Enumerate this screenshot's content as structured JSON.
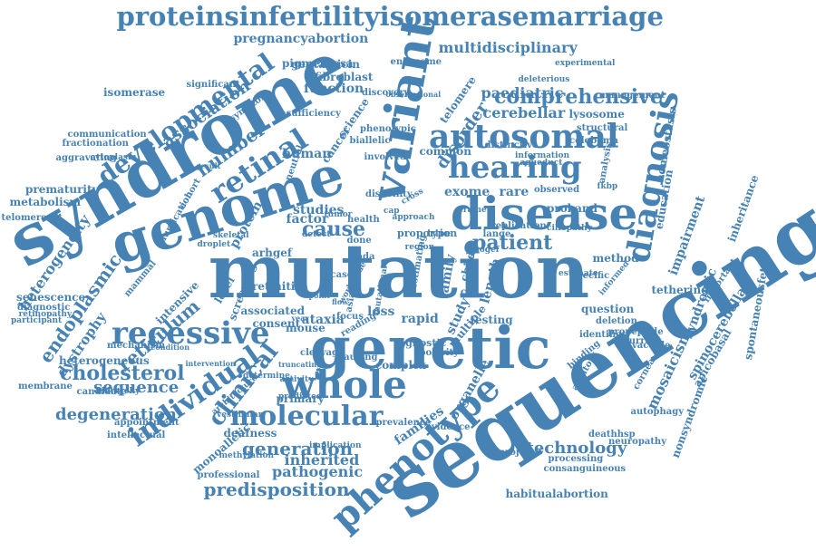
{
  "style": {
    "word_color": "#4682B4",
    "background": "#FFFFFF"
  },
  "words": [
    "proteinsinfertilityisomerasemarriage",
    "sequencing",
    "mutation",
    "syndrome",
    "genetic",
    "genome",
    "variant",
    "disease",
    "whole",
    "diagnosis",
    "autosomal",
    "hearing",
    "recessive",
    "developmental",
    "retinal",
    "phenotype",
    "individual",
    "clinical",
    "molecular",
    "comprehensive",
    "association",
    "number",
    "cause",
    "patient",
    "cholesterol",
    "degeneration",
    "generation",
    "predisposition",
    "pathogenic",
    "technology",
    "reticulum",
    "endoplasmic",
    "heterogeneity",
    "dystrophy",
    "sequence",
    "ataxia",
    "loss",
    "rapid",
    "pregnancyabortion",
    "pigmentosa",
    "multidisciplinary",
    "paediatric",
    "cerebellar",
    "lysosome",
    "disorder",
    "telomere",
    "science",
    "cancer",
    "human",
    "function",
    "fibroblast",
    "gentamicin",
    "endosome",
    "homeostasis",
    "education",
    "impairment",
    "syndromic",
    "mosaicism",
    "spinocerebellar",
    "apicobasal",
    "spontaneousfetal",
    "nonsyndromic",
    "autophagy",
    "neuropathy",
    "deathhsp",
    "habitualabortion",
    "consanguineous",
    "processing",
    "organelle",
    "families",
    "inherited",
    "deafness",
    "primary",
    "studies",
    "exome",
    "rare",
    "proband",
    "method",
    "testing",
    "management",
    "distinctive",
    "common",
    "observed",
    "analysis",
    "isomerase",
    "communication",
    "fractionation",
    "aggravating",
    "prematurity",
    "metabolism",
    "telomerecat",
    "senescence",
    "diagnostic",
    "retinopathy",
    "participant",
    "heterogeneous",
    "candidate",
    "membrane",
    "appointment",
    "intellectual",
    "professional",
    "methylation",
    "implication",
    "mechanism",
    "intensive",
    "associated",
    "consent",
    "mouse",
    "factor",
    "protein",
    "arhgef",
    "cohort",
    "cytoplasm",
    "duplication",
    "symptom",
    "significant",
    "insufficiency",
    "discovery",
    "phenotypic",
    "biallelic",
    "involved",
    "disability",
    "health",
    "tumor",
    "neutral",
    "result",
    "proportion",
    "type",
    "lange",
    "specific",
    "auditory",
    "informed",
    "question",
    "deletion",
    "tethering",
    "important",
    "inheritance",
    "propeptide",
    "recurrent",
    "identifies",
    "vacuole",
    "binding",
    "project",
    "prevalence",
    "evidence",
    "complex",
    "agnostic",
    "polarity",
    "causing",
    "cleavage",
    "reading",
    "family",
    "length",
    "multiple",
    "child",
    "fkbp",
    "structural",
    "coloboma",
    "deleterious",
    "experimental",
    "observational",
    "information",
    "aqueduct",
    "cornea",
    "estimating",
    "level",
    "screening",
    "retinitis",
    "mammal",
    "hierarchy",
    "architecture",
    "vestibular",
    "monoallelic",
    "intervention",
    "condition",
    "truncating",
    "skeletal",
    "droplet",
    "activity",
    "predicted",
    "determine",
    "worldwide",
    "ciliopathy",
    "estimate",
    "replication",
    "rhogef",
    "approach",
    "region",
    "study",
    "dada",
    "case",
    "cell",
    "asian",
    "focus",
    "shock",
    "mutational",
    "flow",
    "point",
    "year",
    "done",
    "cap",
    "frame",
    "cross",
    "detect",
    "zebrafish"
  ]
}
